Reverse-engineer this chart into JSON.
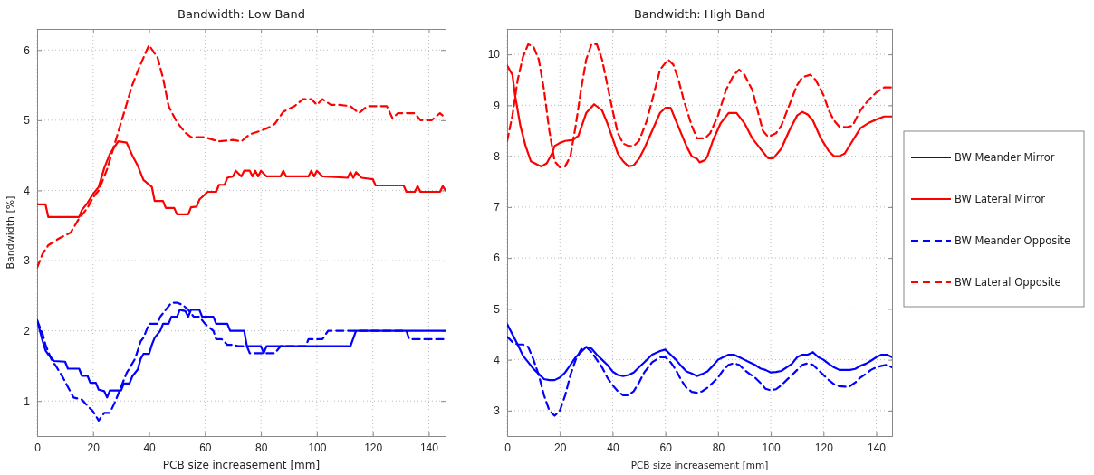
{
  "chart_data": [
    {
      "type": "line",
      "title": "Bandwidth: Low Band",
      "xlabel": "PCB size increasement [mm]",
      "ylabel": "Bandwidth [%]",
      "xlim": [
        0,
        146
      ],
      "ylim": [
        0.5,
        6.3
      ],
      "xticks": [
        0,
        20,
        40,
        60,
        80,
        100,
        120,
        140
      ],
      "yticks": [
        1,
        2,
        3,
        4,
        5,
        6
      ],
      "grid": true,
      "series": [
        {
          "color": "#0000ff",
          "line_style": "solid",
          "x": [
            0,
            1,
            2,
            3,
            4,
            5,
            6,
            10,
            11,
            15,
            16,
            18,
            19,
            21,
            22,
            24,
            25,
            26,
            30,
            31,
            33,
            34,
            36,
            37,
            38,
            40,
            41,
            42,
            44,
            45,
            47,
            48,
            50,
            51,
            53,
            54,
            55,
            58,
            59,
            63,
            64,
            68,
            69,
            74,
            75,
            80,
            81,
            82,
            112,
            114,
            146
          ],
          "values": [
            2.15,
            2.0,
            1.85,
            1.72,
            1.66,
            1.62,
            1.57,
            1.56,
            1.46,
            1.46,
            1.36,
            1.36,
            1.26,
            1.26,
            1.16,
            1.14,
            1.05,
            1.15,
            1.15,
            1.25,
            1.25,
            1.35,
            1.45,
            1.6,
            1.67,
            1.67,
            1.8,
            1.9,
            2.0,
            2.1,
            2.1,
            2.2,
            2.2,
            2.3,
            2.28,
            2.2,
            2.3,
            2.3,
            2.2,
            2.2,
            2.1,
            2.1,
            2.0,
            2.0,
            1.78,
            1.78,
            1.68,
            1.78,
            1.78,
            2.0,
            2.0
          ]
        },
        {
          "color": "#ff0000",
          "line_style": "solid",
          "x": [
            0,
            3,
            4,
            15,
            16,
            18,
            20,
            22,
            24,
            26,
            29,
            32,
            34,
            36,
            38,
            41,
            42,
            45,
            46,
            49,
            50,
            54,
            55,
            57,
            58,
            61,
            64,
            65,
            67,
            68,
            70,
            71,
            73,
            74,
            76,
            77,
            78,
            79,
            80,
            82,
            87,
            88,
            89,
            97,
            98,
            99,
            100,
            102,
            111,
            112,
            113,
            114,
            116,
            120,
            121,
            131,
            132,
            135,
            136,
            137,
            144,
            145,
            146
          ],
          "values": [
            3.8,
            3.8,
            3.62,
            3.62,
            3.72,
            3.82,
            3.95,
            4.05,
            4.32,
            4.52,
            4.7,
            4.68,
            4.5,
            4.35,
            4.15,
            4.05,
            3.85,
            3.85,
            3.75,
            3.75,
            3.66,
            3.66,
            3.76,
            3.77,
            3.87,
            3.98,
            3.98,
            4.08,
            4.08,
            4.18,
            4.2,
            4.28,
            4.2,
            4.28,
            4.28,
            4.2,
            4.28,
            4.2,
            4.28,
            4.2,
            4.2,
            4.28,
            4.2,
            4.2,
            4.28,
            4.2,
            4.28,
            4.2,
            4.18,
            4.26,
            4.18,
            4.26,
            4.18,
            4.16,
            4.07,
            4.07,
            3.98,
            3.98,
            4.06,
            3.98,
            3.98,
            4.06,
            4.0
          ]
        },
        {
          "color": "#0000ff",
          "line_style": "dashed",
          "x": [
            0,
            2,
            3,
            5,
            7,
            9,
            11,
            13,
            16,
            18,
            20,
            22,
            24,
            26,
            28,
            30,
            32,
            35,
            37,
            38,
            40,
            43,
            44,
            46,
            48,
            50,
            52,
            54,
            56,
            58,
            60,
            63,
            64,
            66,
            68,
            70,
            72,
            75,
            76,
            82,
            85,
            87,
            96,
            97,
            102,
            104,
            132,
            133,
            146
          ],
          "values": [
            2.15,
            1.95,
            1.8,
            1.6,
            1.48,
            1.35,
            1.2,
            1.05,
            1.02,
            0.93,
            0.85,
            0.72,
            0.83,
            0.83,
            1.0,
            1.2,
            1.4,
            1.6,
            1.85,
            1.9,
            2.1,
            2.1,
            2.2,
            2.3,
            2.4,
            2.4,
            2.37,
            2.3,
            2.2,
            2.2,
            2.1,
            2.0,
            1.88,
            1.88,
            1.8,
            1.8,
            1.78,
            1.78,
            1.68,
            1.68,
            1.68,
            1.78,
            1.78,
            1.88,
            1.88,
            2.0,
            2.0,
            1.88,
            1.88
          ]
        },
        {
          "color": "#ff0000",
          "line_style": "dashed",
          "x": [
            0,
            2,
            4,
            8,
            12,
            15,
            18,
            20,
            22,
            25,
            28,
            31,
            34,
            37,
            40,
            42,
            43,
            45,
            47,
            50,
            53,
            55,
            60,
            63,
            65,
            70,
            73,
            76,
            80,
            83,
            85,
            88,
            92,
            95,
            98,
            100,
            102,
            105,
            108,
            112,
            115,
            118,
            125,
            127,
            129,
            135,
            137,
            141,
            144,
            146
          ],
          "values": [
            2.9,
            3.1,
            3.22,
            3.32,
            3.4,
            3.6,
            3.75,
            3.9,
            4.0,
            4.3,
            4.7,
            5.1,
            5.5,
            5.8,
            6.07,
            5.95,
            5.9,
            5.6,
            5.2,
            4.97,
            4.82,
            4.76,
            4.76,
            4.72,
            4.7,
            4.72,
            4.7,
            4.8,
            4.85,
            4.9,
            4.95,
            5.12,
            5.2,
            5.3,
            5.3,
            5.22,
            5.3,
            5.22,
            5.22,
            5.2,
            5.1,
            5.2,
            5.2,
            5.03,
            5.1,
            5.1,
            5.0,
            5.0,
            5.1,
            5.03
          ]
        }
      ]
    },
    {
      "type": "line",
      "title": "Bandwidth: High Band",
      "xlabel": "PCB size increasement [mm]",
      "xlim": [
        0,
        146
      ],
      "ylim": [
        2.5,
        10.5
      ],
      "xticks": [
        0,
        20,
        40,
        60,
        80,
        100,
        120,
        140
      ],
      "yticks": [
        3,
        4,
        5,
        6,
        7,
        8,
        9,
        10
      ],
      "grid": true,
      "legend": "right",
      "series": [
        {
          "name": "BW Meander Mirror",
          "color": "#0000ff",
          "line_style": "solid",
          "x": [
            0,
            2,
            4,
            6,
            8,
            10,
            12,
            14,
            16,
            18,
            20,
            22,
            24,
            26,
            28,
            30,
            32,
            34,
            36,
            38,
            40,
            42,
            44,
            46,
            48,
            50,
            52,
            55,
            58,
            60,
            62,
            64,
            66,
            68,
            70,
            72,
            74,
            76,
            78,
            80,
            82,
            84,
            86,
            88,
            90,
            92,
            94,
            96,
            98,
            100,
            102,
            104,
            106,
            108,
            110,
            112,
            114,
            116,
            118,
            120,
            122,
            124,
            126,
            130,
            132,
            134,
            136,
            138,
            140,
            142,
            144,
            146
          ],
          "values": [
            4.7,
            4.5,
            4.3,
            4.08,
            3.95,
            3.82,
            3.72,
            3.62,
            3.6,
            3.6,
            3.65,
            3.75,
            3.9,
            4.05,
            4.15,
            4.25,
            4.22,
            4.1,
            4.0,
            3.9,
            3.77,
            3.7,
            3.68,
            3.7,
            3.75,
            3.85,
            3.95,
            4.1,
            4.17,
            4.2,
            4.1,
            4.0,
            3.88,
            3.77,
            3.73,
            3.68,
            3.72,
            3.77,
            3.88,
            4.0,
            4.05,
            4.1,
            4.1,
            4.05,
            4.0,
            3.95,
            3.9,
            3.83,
            3.8,
            3.75,
            3.76,
            3.78,
            3.85,
            3.92,
            4.05,
            4.1,
            4.1,
            4.15,
            4.05,
            4.0,
            3.92,
            3.85,
            3.8,
            3.8,
            3.82,
            3.88,
            3.92,
            3.98,
            4.05,
            4.1,
            4.1,
            4.05
          ]
        },
        {
          "name": "BW Lateral Mirror",
          "color": "#ff0000",
          "line_style": "solid",
          "x": [
            0,
            2,
            3,
            4,
            5,
            7,
            9,
            12,
            13,
            15,
            17,
            18,
            20,
            22,
            25,
            27,
            30,
            33,
            36,
            38,
            40,
            42,
            44,
            46,
            48,
            50,
            52,
            55,
            58,
            60,
            62,
            64,
            66,
            68,
            70,
            72,
            73,
            75,
            76,
            78,
            81,
            84,
            87,
            90,
            93,
            96,
            99,
            101,
            104,
            107,
            110,
            112,
            114,
            116,
            119,
            122,
            124,
            126,
            128,
            131,
            134,
            137,
            140,
            143,
            146
          ],
          "values": [
            9.78,
            9.6,
            9.2,
            8.9,
            8.6,
            8.2,
            7.9,
            7.82,
            7.8,
            7.86,
            8.05,
            8.2,
            8.26,
            8.3,
            8.32,
            8.4,
            8.85,
            9.02,
            8.9,
            8.65,
            8.35,
            8.05,
            7.9,
            7.8,
            7.82,
            7.95,
            8.15,
            8.5,
            8.85,
            8.95,
            8.95,
            8.7,
            8.45,
            8.2,
            8.0,
            7.95,
            7.88,
            7.92,
            8.0,
            8.3,
            8.65,
            8.85,
            8.85,
            8.65,
            8.35,
            8.15,
            7.96,
            7.96,
            8.15,
            8.5,
            8.8,
            8.87,
            8.82,
            8.7,
            8.35,
            8.1,
            8.0,
            8.0,
            8.05,
            8.3,
            8.55,
            8.65,
            8.72,
            8.78,
            8.78
          ]
        },
        {
          "name": "BW Meander Opposite",
          "color": "#0000ff",
          "line_style": "dashed",
          "x": [
            0,
            2,
            4,
            6,
            8,
            10,
            12,
            14,
            16,
            18,
            20,
            22,
            24,
            26,
            28,
            30,
            32,
            34,
            36,
            38,
            40,
            42,
            44,
            46,
            48,
            50,
            52,
            55,
            58,
            60,
            62,
            64,
            66,
            68,
            70,
            72,
            74,
            76,
            78,
            80,
            82,
            84,
            86,
            88,
            90,
            92,
            94,
            96,
            98,
            100,
            102,
            104,
            106,
            108,
            110,
            112,
            114,
            116,
            118,
            120,
            122,
            124,
            126,
            128,
            130,
            132,
            134,
            136,
            138,
            140,
            142,
            144,
            146
          ],
          "values": [
            4.45,
            4.35,
            4.3,
            4.3,
            4.25,
            4.0,
            3.7,
            3.3,
            3.0,
            2.9,
            3.0,
            3.3,
            3.7,
            4.0,
            4.2,
            4.25,
            4.15,
            4.0,
            3.85,
            3.65,
            3.5,
            3.38,
            3.3,
            3.3,
            3.38,
            3.55,
            3.75,
            3.95,
            4.05,
            4.05,
            3.95,
            3.8,
            3.6,
            3.45,
            3.37,
            3.35,
            3.38,
            3.45,
            3.55,
            3.65,
            3.8,
            3.9,
            3.93,
            3.9,
            3.8,
            3.72,
            3.65,
            3.55,
            3.43,
            3.4,
            3.42,
            3.5,
            3.6,
            3.7,
            3.8,
            3.9,
            3.93,
            3.9,
            3.8,
            3.7,
            3.6,
            3.52,
            3.48,
            3.47,
            3.48,
            3.55,
            3.65,
            3.72,
            3.8,
            3.85,
            3.88,
            3.9,
            3.85
          ]
        },
        {
          "name": "BW Lateral Opposite",
          "color": "#ff0000",
          "line_style": "dashed",
          "x": [
            0,
            2,
            4,
            6,
            8,
            10,
            12,
            14,
            16,
            18,
            20,
            22,
            24,
            26,
            28,
            30,
            32,
            34,
            36,
            38,
            40,
            42,
            44,
            46,
            48,
            50,
            53,
            56,
            58,
            61,
            63,
            65,
            67,
            70,
            72,
            75,
            77,
            80,
            83,
            86,
            88,
            90,
            93,
            95,
            97,
            99,
            102,
            104,
            107,
            110,
            112,
            115,
            117,
            120,
            122,
            124,
            126,
            129,
            131,
            134,
            137,
            140,
            143,
            146
          ],
          "values": [
            8.3,
            8.8,
            9.5,
            9.95,
            10.2,
            10.15,
            9.9,
            9.3,
            8.5,
            7.9,
            7.78,
            7.8,
            8.0,
            8.6,
            9.3,
            9.9,
            10.2,
            10.2,
            9.9,
            9.4,
            8.9,
            8.45,
            8.25,
            8.2,
            8.2,
            8.3,
            8.7,
            9.3,
            9.7,
            9.9,
            9.8,
            9.5,
            9.1,
            8.6,
            8.35,
            8.35,
            8.45,
            8.8,
            9.3,
            9.6,
            9.7,
            9.6,
            9.3,
            8.9,
            8.5,
            8.38,
            8.45,
            8.6,
            9.0,
            9.4,
            9.55,
            9.6,
            9.5,
            9.2,
            8.9,
            8.7,
            8.58,
            8.57,
            8.6,
            8.9,
            9.1,
            9.25,
            9.35,
            9.35
          ]
        }
      ]
    }
  ]
}
